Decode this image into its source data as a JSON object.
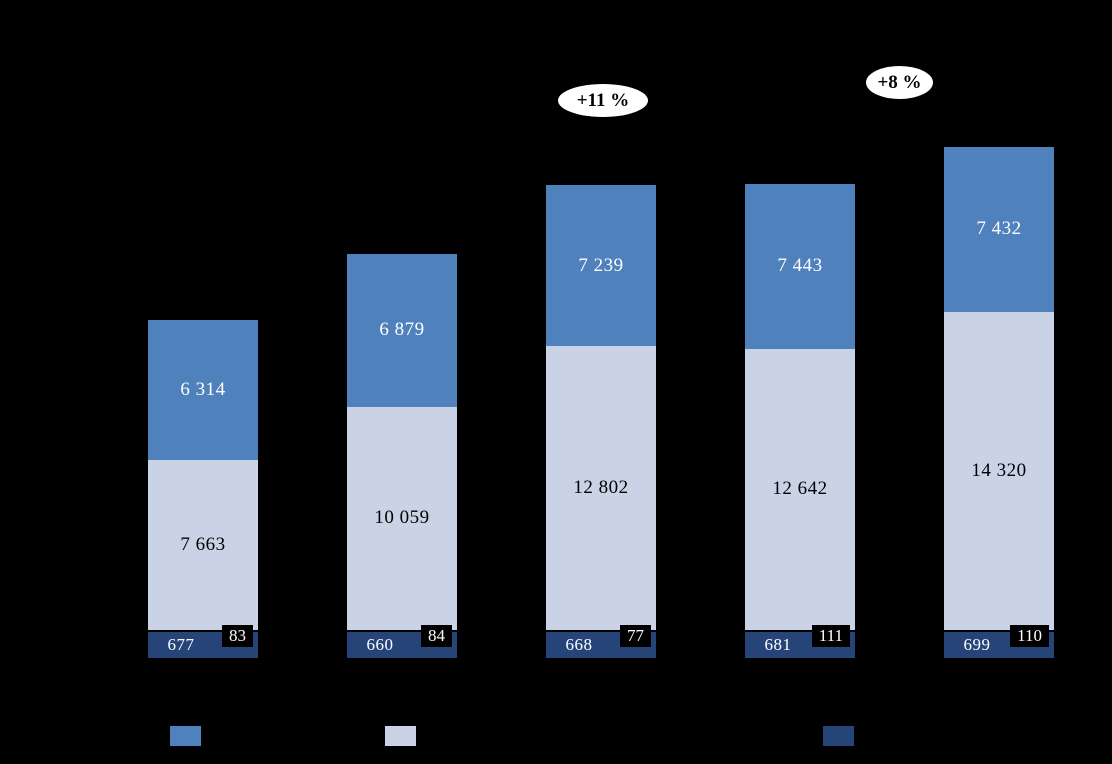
{
  "chart_data": {
    "type": "bar",
    "stacked": true,
    "background": "#000000",
    "grid": false,
    "categories": [
      "",
      "",
      "",
      "",
      ""
    ],
    "series": [
      {
        "key": "bottom-dark-blue",
        "color": "#264478",
        "values": [
          677,
          660,
          668,
          681,
          699
        ],
        "labels": [
          "677",
          "660",
          "668",
          "681",
          "699"
        ],
        "label_color": "#ffffff"
      },
      {
        "key": "black-count",
        "color": "#000000",
        "values": [
          83,
          84,
          77,
          111,
          110
        ],
        "labels": [
          "83",
          "84",
          "77",
          "111",
          "110"
        ],
        "label_color": "#ffffff",
        "label_background": "#000000"
      },
      {
        "key": "middle-light-blue",
        "color": "#C9D3E5",
        "values": [
          7663,
          10059,
          12802,
          12642,
          14320
        ],
        "labels": [
          "7 663",
          "10 059",
          "12 802",
          "12 642",
          "14 320"
        ],
        "label_color": "#000000"
      },
      {
        "key": "top-medium-blue",
        "color": "#4F81BD",
        "values": [
          6314,
          6879,
          7239,
          7443,
          7432
        ],
        "labels": [
          "6 314",
          "6 879",
          "7 239",
          "7 443",
          "7 432"
        ],
        "label_color": "#ffffff"
      }
    ],
    "annotations": [
      {
        "text": "+11 %",
        "bar_index": 2
      },
      {
        "text": "+8 %",
        "bar_index": 4
      }
    ],
    "legend": {
      "position": "bottom",
      "items": [
        {
          "color": "#4F81BD",
          "label": ""
        },
        {
          "color": "#C9D3E5",
          "label": ""
        },
        {
          "color": "#264478",
          "label": ""
        }
      ]
    }
  }
}
